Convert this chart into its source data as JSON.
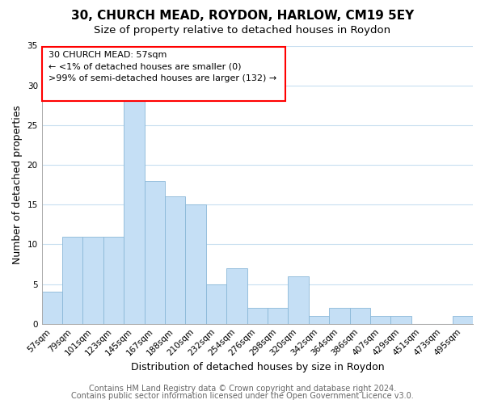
{
  "title": "30, CHURCH MEAD, ROYDON, HARLOW, CM19 5EY",
  "subtitle": "Size of property relative to detached houses in Roydon",
  "xlabel": "Distribution of detached houses by size in Roydon",
  "ylabel": "Number of detached properties",
  "bar_labels": [
    "57sqm",
    "79sqm",
    "101sqm",
    "123sqm",
    "145sqm",
    "167sqm",
    "188sqm",
    "210sqm",
    "232sqm",
    "254sqm",
    "276sqm",
    "298sqm",
    "320sqm",
    "342sqm",
    "364sqm",
    "386sqm",
    "407sqm",
    "429sqm",
    "451sqm",
    "473sqm",
    "495sqm"
  ],
  "bar_values": [
    4,
    11,
    11,
    11,
    28,
    18,
    16,
    15,
    5,
    7,
    2,
    2,
    6,
    1,
    2,
    2,
    1,
    1,
    0,
    0,
    1
  ],
  "bar_color": "#c5dff5",
  "bar_edge_color": "#8ab8d8",
  "annotation_box_text": "30 CHURCH MEAD: 57sqm\n← <1% of detached houses are smaller (0)\n>99% of semi-detached houses are larger (132) →",
  "ylim": [
    0,
    35
  ],
  "yticks": [
    0,
    5,
    10,
    15,
    20,
    25,
    30,
    35
  ],
  "footnote1": "Contains HM Land Registry data © Crown copyright and database right 2024.",
  "footnote2": "Contains public sector information licensed under the Open Government Licence v3.0.",
  "bg_color": "#ffffff",
  "plot_bg_color": "#ffffff",
  "grid_color": "#c8dff0",
  "title_fontsize": 11,
  "subtitle_fontsize": 9.5,
  "axis_label_fontsize": 9,
  "tick_fontsize": 7.5,
  "footnote_fontsize": 7
}
